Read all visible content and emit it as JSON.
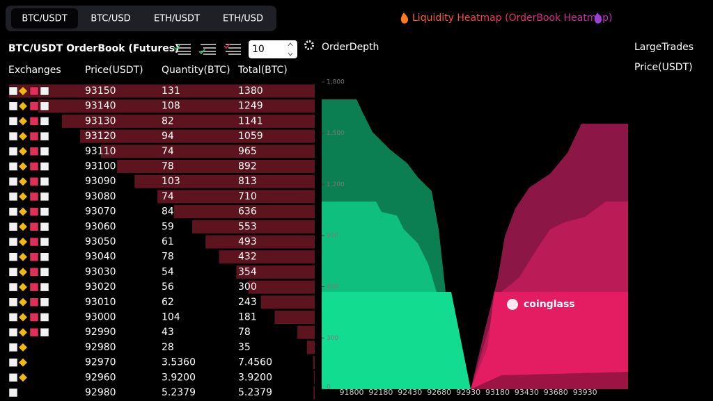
{
  "tabs": [
    "BTC/USDT",
    "BTC/USD",
    "ETH/USDT",
    "ETH/USD"
  ],
  "heatmap_link": "Liquidity Heatmap (OrderBook Heatmap)",
  "orderbook": {
    "title": "BTC/USDT OrderBook (Futures)",
    "depth_setting": "10",
    "columns": [
      "Exchanges",
      "Price(USDT)",
      "Quantity(BTC)",
      "Total(BTC)"
    ],
    "rows": [
      [
        "93150",
        "131",
        "1380"
      ],
      [
        "93140",
        "108",
        "1249"
      ],
      [
        "93130",
        "82",
        "1141"
      ],
      [
        "93120",
        "94",
        "1059"
      ],
      [
        "93110",
        "74",
        "965"
      ],
      [
        "93100",
        "78",
        "892"
      ],
      [
        "93090",
        "103",
        "813"
      ],
      [
        "93080",
        "74",
        "710"
      ],
      [
        "93070",
        "84",
        "636"
      ],
      [
        "93060",
        "59",
        "553"
      ],
      [
        "93050",
        "61",
        "493"
      ],
      [
        "93040",
        "78",
        "432"
      ],
      [
        "93030",
        "54",
        "354"
      ],
      [
        "93020",
        "56",
        "300"
      ],
      [
        "93010",
        "62",
        "243"
      ],
      [
        "93000",
        "104",
        "181"
      ],
      [
        "92990",
        "43",
        "78"
      ],
      [
        "92980",
        "28",
        "35"
      ],
      [
        "92970",
        "3.5360",
        "7.4560"
      ],
      [
        "92960",
        "3.9200",
        "3.9200"
      ],
      [
        "92980",
        "5.2379",
        "5.2379"
      ]
    ]
  },
  "order_depth": {
    "title": "OrderDepth",
    "ylim": [
      0,
      1800
    ],
    "yticks": [
      0,
      300,
      600,
      900,
      {
        "value": 1200,
        "label": "1,200"
      },
      {
        "value": 1500,
        "label": "1,500"
      },
      {
        "value": 1800,
        "label": "1,800"
      }
    ],
    "xticks": [
      "91800",
      "92180",
      "92430",
      "92680",
      "92930",
      "93180",
      "93430",
      "93680",
      "93930"
    ],
    "watermark": "coinglass"
  },
  "large_trades": {
    "title": "LargeTrades",
    "column": "Price(USDT)"
  }
}
